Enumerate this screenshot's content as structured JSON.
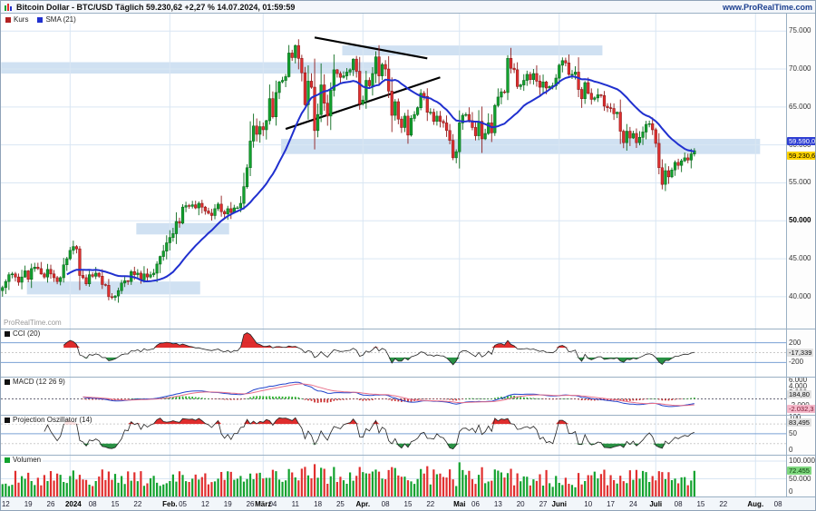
{
  "header": {
    "title": "Bitcoin Dollar - BTC/USD Täglich 59.230,62 +2,27 % 14.07.2024, 01:59:59",
    "website": "www.ProRealTime.com"
  },
  "legend": {
    "price_label": "Kurs",
    "sma_label": "SMA (21)"
  },
  "watermark": "ProRealTime.com",
  "price_axis": {
    "sma_badge": "59.590,03",
    "price_badge": "59.230,62",
    "bold_tick": 50000
  },
  "panels": {
    "cci": {
      "label": "CCI (20)",
      "square_color": "#111111",
      "ticks": [
        {
          "label": "200",
          "v": 200
        },
        {
          "label": "-200",
          "v": -200
        }
      ],
      "badge": "-17,339"
    },
    "macd": {
      "label": "MACD (12 26 9)",
      "square_color": "#111111",
      "ticks": [
        {
          "label": "6.000",
          "v": 6000
        },
        {
          "label": "4.000",
          "v": 4000
        },
        {
          "label": "2.000",
          "v": 2000
        },
        {
          "label": "-2.000",
          "v": -2000
        }
      ],
      "badge_macd": "184,80",
      "badge_signal": "-2.032,3"
    },
    "projosc": {
      "label": "Projection Oszillator (14)",
      "square_color": "#111111",
      "ticks": [
        {
          "label": "100",
          "v": 100
        },
        {
          "label": "50",
          "v": 50
        },
        {
          "label": "0",
          "v": 0
        }
      ],
      "badge": "83,495"
    },
    "volume": {
      "label": "Volumen",
      "square_color": "#12a22e",
      "ticks": [
        {
          "label": "100.000",
          "v": 100000
        },
        {
          "label": "50.000",
          "v": 50000
        },
        {
          "label": "0",
          "v": 0
        }
      ],
      "badge": "72.455"
    }
  },
  "colors": {
    "up": "#12a22e",
    "up_border": "#0a6b1d",
    "down": "#e12f2f",
    "down_border": "#8f1d1d",
    "sma": "#2030cf",
    "legend_kurs": "#b22222",
    "zone_fill": "#aac8e8",
    "trendline": "#000000",
    "grid": "#d9e6f3",
    "threshold_line": "#7aa0d4",
    "cci_fill_high": "#dd2222",
    "cci_fill_low": "#1e8b3a",
    "macd_line": "#2244cc",
    "macd_signal": "#e8708a",
    "macd_hist_pos": "#2ab32a",
    "macd_hist_neg": "#cc3333",
    "po_line": "#222222",
    "badge_price_bg": "#ffd400",
    "badge_price_text": "#000000",
    "badge_sma_bg": "#2f3fd3",
    "badge_sma_text": "#ffffff",
    "badge_grey_bg": "#e2e2e2",
    "badge_pink_bg": "#f4b9ca",
    "badge_green_bg": "#7ed67e"
  },
  "chart_data": {
    "type": "candlestick",
    "title": "Bitcoin Dollar - BTC/USD Täglich",
    "timeframe": "Täglich",
    "last_close": 59230.62,
    "change_pct": "+2,27 %",
    "sma_period": 21,
    "ylim": [
      35800,
      77300
    ],
    "grid_prices": [
      40000,
      45000,
      50000,
      55000,
      60000,
      65000,
      70000,
      75000
    ],
    "x_slots": 244,
    "month_slots": [
      21,
      52,
      81,
      112,
      142,
      173,
      203,
      234
    ],
    "close": [
      41200,
      42000,
      42900,
      43000,
      42600,
      41900,
      42600,
      43400,
      42300,
      43700,
      43900,
      43700,
      43000,
      42600,
      43600,
      43000,
      42500,
      42000,
      42500,
      44200,
      45000,
      46100,
      46600,
      46300,
      42800,
      42500,
      41700,
      42900,
      42700,
      43100,
      42700,
      41600,
      41500,
      40000,
      39900,
      40100,
      40800,
      41800,
      42100,
      42000,
      43300,
      42900,
      43100,
      42200,
      43000,
      42600,
      42900,
      43100,
      44300,
      45300,
      46000,
      47100,
      47800,
      48300,
      49900,
      49700,
      51800,
      52000,
      51900,
      52100,
      51700,
      52300,
      51800,
      51300,
      51000,
      50700,
      51600,
      52200,
      51200,
      50900,
      51600,
      51100,
      51700,
      51700,
      52300,
      54500,
      57000,
      60500,
      62500,
      61400,
      62400,
      62000,
      63200,
      66100,
      63700,
      66900,
      68300,
      68500,
      69000,
      72100,
      71500,
      73100,
      71400,
      69500,
      65300,
      68400,
      67600,
      61900,
      64000,
      67900,
      65500,
      63800,
      67200,
      69900,
      69400,
      68900,
      69100,
      69600,
      69900,
      71300,
      69700,
      65400,
      65900,
      68500,
      67800,
      69400,
      71600,
      69100,
      70600,
      70000,
      67100,
      63900,
      65700,
      63400,
      62300,
      63800,
      61300,
      63500,
      64000,
      64900,
      66800,
      66400,
      64300,
      64300,
      63100,
      63800,
      63100,
      62900,
      61900,
      60600,
      58300,
      59100,
      62900,
      63900,
      64000,
      63200,
      62300,
      61200,
      63100,
      60800,
      61500,
      62900,
      61600,
      65200,
      66300,
      67000,
      66900,
      71400,
      70100,
      69900,
      67700,
      67900,
      68500,
      69300,
      68600,
      69400,
      68400,
      67600,
      68300,
      67500,
      67700,
      67800,
      68800,
      70500,
      71100,
      70800,
      69300,
      69300,
      69600,
      67300,
      66100,
      68200,
      66800,
      66000,
      66200,
      66600,
      66500,
      65100,
      64900,
      64800,
      64100,
      64300,
      61800,
      60300,
      61800,
      60900,
      61500,
      60300,
      61000,
      61700,
      62700,
      62800,
      62000,
      60200,
      57000,
      54800,
      56600,
      55800,
      56700,
      57700,
      57300,
      57900,
      58300,
      58000,
      58800,
      59231
    ],
    "zones": [
      [
        0,
        117,
        69400,
        70900
      ],
      [
        106,
        186,
        71800,
        73100
      ],
      [
        87,
        235,
        58800,
        60800
      ],
      [
        42,
        70,
        48200,
        49700
      ],
      [
        8,
        61,
        40300,
        42000
      ]
    ],
    "trendlines": [
      [
        97,
        74150,
        132,
        71400
      ],
      [
        88,
        62100,
        136,
        68900
      ]
    ],
    "x_ticks": [
      [
        1,
        "12",
        0
      ],
      [
        8,
        "19",
        0
      ],
      [
        15,
        "26",
        0
      ],
      [
        22,
        "2024",
        1
      ],
      [
        28,
        "08",
        0
      ],
      [
        35,
        "15",
        0
      ],
      [
        42,
        "22",
        0
      ],
      [
        52,
        "Feb.",
        1
      ],
      [
        56,
        "05",
        0
      ],
      [
        63,
        "12",
        0
      ],
      [
        70,
        "19",
        0
      ],
      [
        77,
        "26",
        0
      ],
      [
        81,
        "März",
        1
      ],
      [
        84,
        "04",
        0
      ],
      [
        91,
        "11",
        0
      ],
      [
        98,
        "18",
        0
      ],
      [
        105,
        "25",
        0
      ],
      [
        112,
        "Apr.",
        1
      ],
      [
        119,
        "08",
        0
      ],
      [
        126,
        "15",
        0
      ],
      [
        133,
        "22",
        0
      ],
      [
        142,
        "Mai",
        1
      ],
      [
        147,
        "06",
        0
      ],
      [
        154,
        "13",
        0
      ],
      [
        161,
        "20",
        0
      ],
      [
        168,
        "27",
        0
      ],
      [
        173,
        "Juni",
        1
      ],
      [
        182,
        "10",
        0
      ],
      [
        189,
        "17",
        0
      ],
      [
        196,
        "24",
        0
      ],
      [
        203,
        "Juli",
        1
      ],
      [
        210,
        "08",
        0
      ],
      [
        217,
        "15",
        0
      ],
      [
        224,
        "22",
        0
      ],
      [
        234,
        "Aug.",
        1
      ],
      [
        241,
        "08",
        0
      ]
    ]
  }
}
